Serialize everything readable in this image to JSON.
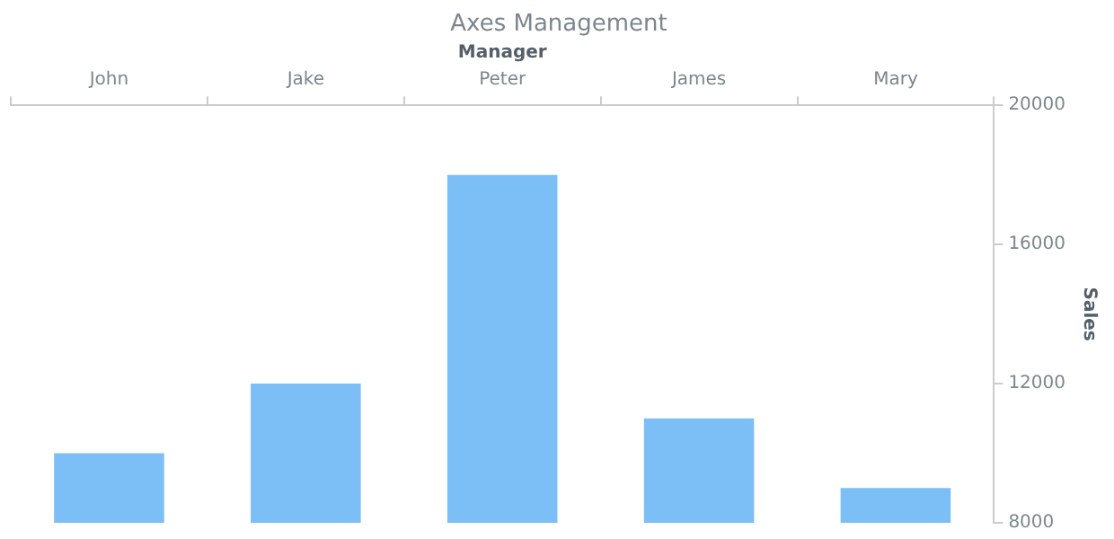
{
  "chart_data": {
    "type": "bar",
    "title": "Axes Management",
    "xlabel": "Manager",
    "ylabel": "Sales",
    "categories": [
      "John",
      "Jake",
      "Peter",
      "James",
      "Mary"
    ],
    "values": [
      10000,
      12000,
      18000,
      11000,
      9000
    ],
    "color": "#7cbef6",
    "ylim": [
      8000,
      20000
    ],
    "yticks": [
      8000,
      12000,
      16000,
      20000
    ],
    "grid": false,
    "legend": false
  }
}
